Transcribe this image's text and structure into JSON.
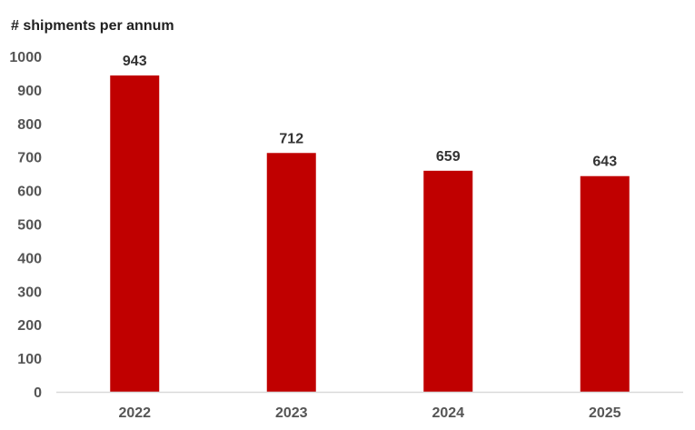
{
  "chart_data": {
    "type": "bar",
    "title": "# shipments per annum",
    "xlabel": "",
    "ylabel": "",
    "categories": [
      "2022",
      "2023",
      "2024",
      "2025"
    ],
    "values": [
      943,
      712,
      659,
      643
    ],
    "data_labels": [
      "943",
      "712",
      "659",
      "643"
    ],
    "ylim": [
      0,
      1000
    ],
    "yticks": [
      0,
      100,
      200,
      300,
      400,
      500,
      600,
      700,
      800,
      900,
      1000
    ],
    "ytick_labels": [
      "0",
      "100",
      "200",
      "300",
      "400",
      "500",
      "600",
      "700",
      "800",
      "900",
      "1000"
    ],
    "grid": false,
    "legend": "none",
    "colors": {
      "bar": "#c00000",
      "axis": "#d9d9d9"
    }
  }
}
